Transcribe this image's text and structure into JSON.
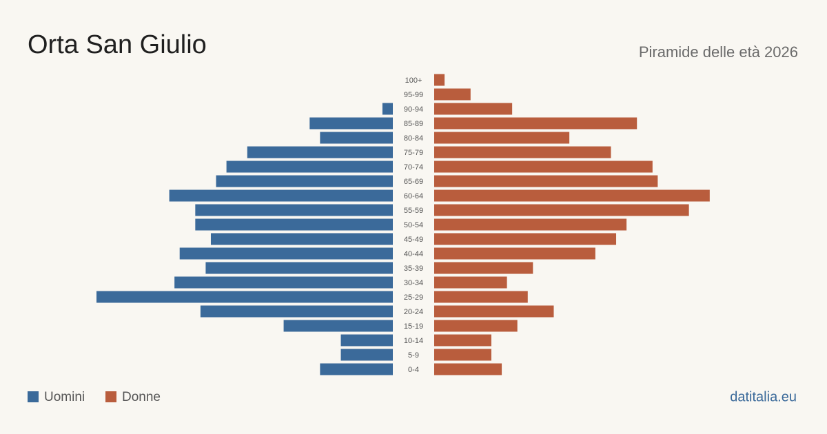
{
  "chart_data": {
    "type": "pyramid",
    "title": "Orta San Giulio",
    "subtitle": "Piramide delle età 2026",
    "source": "datitalia.eu",
    "categories": [
      "100+",
      "95-99",
      "90-94",
      "85-89",
      "80-84",
      "75-79",
      "70-74",
      "65-69",
      "60-64",
      "55-59",
      "50-54",
      "45-49",
      "40-44",
      "35-39",
      "30-34",
      "25-29",
      "20-24",
      "15-19",
      "10-14",
      "5-9",
      "0-4"
    ],
    "series": [
      {
        "name": "Uomini",
        "color": "#3b6a9a",
        "values": [
          0,
          0,
          2,
          16,
          14,
          28,
          32,
          34,
          43,
          38,
          38,
          35,
          41,
          36,
          42,
          57,
          37,
          21,
          10,
          10,
          14
        ]
      },
      {
        "name": "Donne",
        "color": "#b95d3d",
        "values": [
          2,
          7,
          15,
          39,
          26,
          34,
          42,
          43,
          53,
          49,
          37,
          35,
          31,
          19,
          14,
          18,
          23,
          16,
          11,
          11,
          13
        ]
      }
    ]
  }
}
